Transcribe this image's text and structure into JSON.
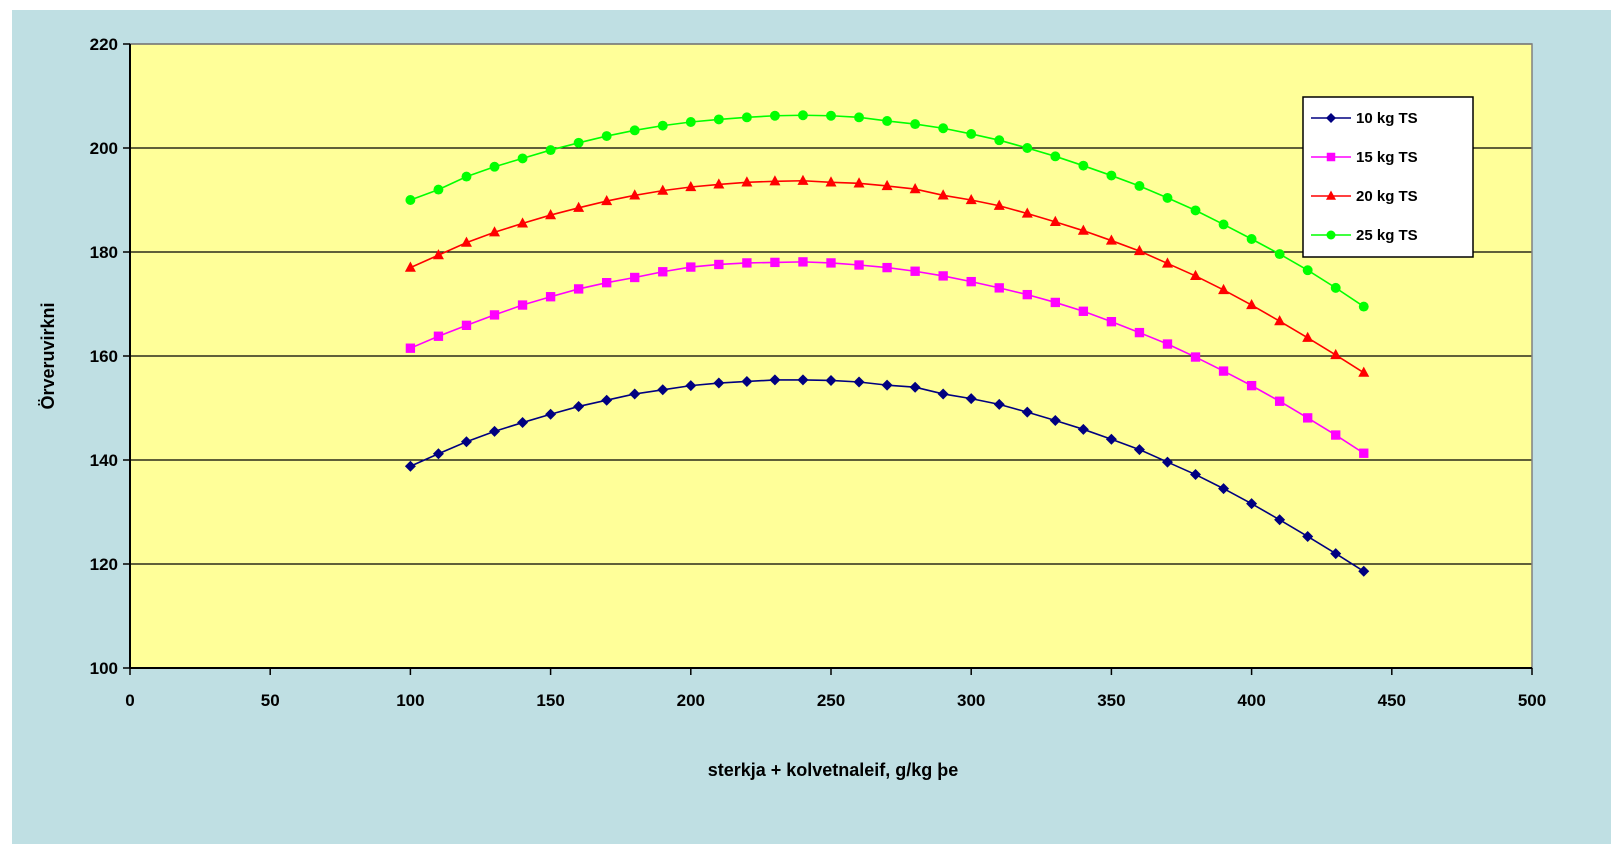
{
  "chart_data": {
    "type": "line",
    "title": "",
    "xlabel": "sterkja + kolvetnaleif, g/kg þe",
    "ylabel": "Örveruvirkni",
    "xlim": [
      0,
      500
    ],
    "ylim": [
      100,
      220
    ],
    "xticks": [
      0,
      50,
      100,
      150,
      200,
      250,
      300,
      350,
      400,
      450,
      500
    ],
    "yticks": [
      100,
      120,
      140,
      160,
      180,
      200,
      220
    ],
    "grid": "horizontal",
    "legend_position": "top-right",
    "x": [
      100,
      110,
      120,
      130,
      140,
      150,
      160,
      170,
      180,
      190,
      200,
      210,
      220,
      230,
      240,
      250,
      260,
      270,
      280,
      290,
      300,
      310,
      320,
      330,
      340,
      350,
      360,
      370,
      380,
      390,
      400,
      410,
      420,
      430,
      440
    ],
    "series": [
      {
        "name": "10 kg TS",
        "color": "#000080",
        "marker": "diamond",
        "values": [
          138.8,
          141.2,
          143.5,
          145.5,
          147.2,
          148.8,
          150.3,
          151.5,
          152.7,
          153.5,
          154.3,
          154.8,
          155.1,
          155.4,
          155.4,
          155.3,
          155.0,
          154.4,
          154.0,
          152.7,
          151.8,
          150.7,
          149.2,
          147.6,
          145.9,
          144.0,
          142.0,
          139.6,
          137.2,
          134.5,
          131.6,
          128.5,
          125.3,
          122.0,
          118.6
        ]
      },
      {
        "name": "15 kg TS",
        "color": "#FF00FF",
        "marker": "square",
        "values": [
          161.5,
          163.8,
          165.9,
          167.9,
          169.8,
          171.4,
          172.9,
          174.1,
          175.1,
          176.2,
          177.1,
          177.6,
          177.9,
          178.0,
          178.1,
          177.9,
          177.5,
          177.0,
          176.3,
          175.4,
          174.3,
          173.1,
          171.8,
          170.3,
          168.6,
          166.6,
          164.5,
          162.3,
          159.8,
          157.1,
          154.3,
          151.3,
          148.1,
          144.8,
          141.3
        ]
      },
      {
        "name": "20 kg TS",
        "color": "#FF0000",
        "marker": "triangle",
        "values": [
          177.0,
          179.4,
          181.8,
          183.8,
          185.5,
          187.1,
          188.5,
          189.8,
          190.9,
          191.8,
          192.5,
          193.0,
          193.4,
          193.6,
          193.7,
          193.4,
          193.2,
          192.7,
          192.1,
          190.9,
          190.0,
          188.9,
          187.4,
          185.8,
          184.1,
          182.2,
          180.2,
          177.8,
          175.4,
          172.7,
          169.8,
          166.7,
          163.5,
          160.2,
          156.8
        ]
      },
      {
        "name": "25 kg TS",
        "color": "#00FF00",
        "marker": "circle",
        "values": [
          190.0,
          192.0,
          194.5,
          196.4,
          198.0,
          199.6,
          201.0,
          202.3,
          203.4,
          204.3,
          205.0,
          205.5,
          205.9,
          206.2,
          206.3,
          206.2,
          205.9,
          205.2,
          204.6,
          203.8,
          202.7,
          201.5,
          200.0,
          198.4,
          196.6,
          194.7,
          192.7,
          190.4,
          188.0,
          185.3,
          182.5,
          179.6,
          176.5,
          173.1,
          169.5
        ]
      }
    ]
  }
}
